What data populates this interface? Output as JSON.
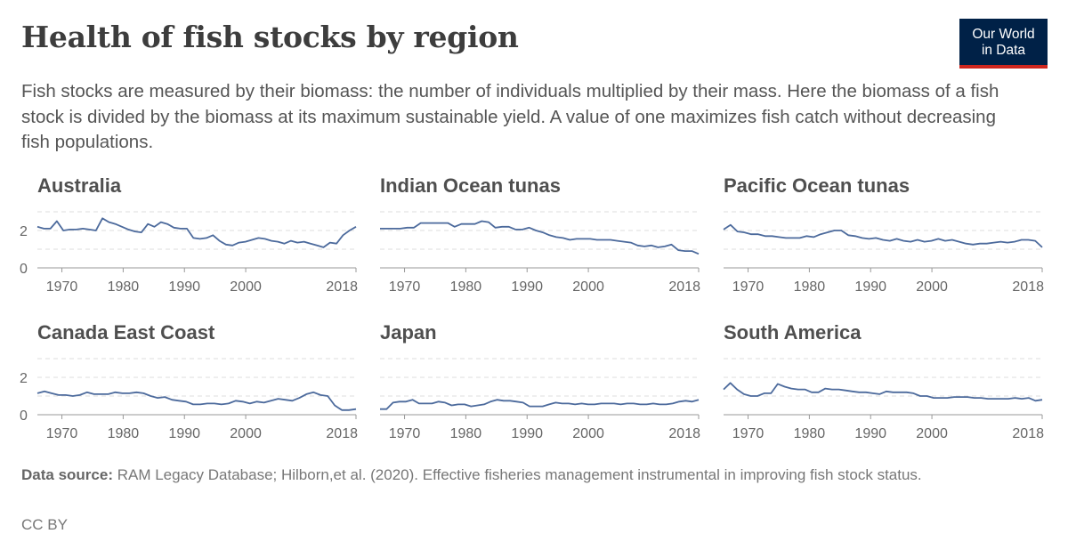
{
  "header": {
    "title": "Health of fish stocks by region",
    "subtitle": "Fish stocks are measured by their biomass: the number of individuals multiplied by their mass. Here the biomass of a fish stock is divided by the biomass at its maximum sustainable yield. A value of one maximizes fish catch without decreasing fish populations."
  },
  "logo": {
    "line1": "Our World",
    "line2": "in Data",
    "bg": "#002147",
    "accent": "#ce261e"
  },
  "footer": {
    "source_label": "Data source:",
    "source_text": "RAM Legacy Database; Hilborn,et al. (2020). Effective fisheries management instrumental in improving fish stock status.",
    "license": "CC BY"
  },
  "chart_data": {
    "type": "line",
    "line_color": "#4c6a9c",
    "grid": true,
    "x_ticks": [
      "1970",
      "1980",
      "1990",
      "2000",
      "2018"
    ],
    "y_ticks": [
      "0",
      "2"
    ],
    "xlim": [
      1966,
      2018
    ],
    "ylim": [
      0,
      3
    ],
    "panels": [
      {
        "title": "Australia",
        "values": [
          2.2,
          2.1,
          2.1,
          2.5,
          2.0,
          2.05,
          2.05,
          2.1,
          2.05,
          2.0,
          2.65,
          2.45,
          2.35,
          2.2,
          2.05,
          1.95,
          1.9,
          2.35,
          2.2,
          2.45,
          2.35,
          2.15,
          2.1,
          2.1,
          1.6,
          1.55,
          1.6,
          1.75,
          1.45,
          1.25,
          1.2,
          1.35,
          1.4,
          1.5,
          1.6,
          1.55,
          1.45,
          1.4,
          1.3,
          1.45,
          1.35,
          1.4,
          1.3,
          1.2,
          1.1,
          1.35,
          1.3,
          1.75,
          2.0,
          2.2
        ]
      },
      {
        "title": "Indian Ocean tunas",
        "values": [
          2.1,
          2.1,
          2.1,
          2.1,
          2.15,
          2.15,
          2.4,
          2.4,
          2.4,
          2.4,
          2.4,
          2.2,
          2.35,
          2.35,
          2.35,
          2.5,
          2.45,
          2.15,
          2.2,
          2.2,
          2.05,
          2.05,
          2.15,
          2.0,
          1.9,
          1.75,
          1.65,
          1.6,
          1.5,
          1.55,
          1.55,
          1.55,
          1.5,
          1.5,
          1.5,
          1.45,
          1.4,
          1.35,
          1.2,
          1.15,
          1.2,
          1.1,
          1.15,
          1.25,
          0.95,
          0.9,
          0.9,
          0.75
        ]
      },
      {
        "title": "Pacific Ocean tunas",
        "values": [
          2.05,
          2.3,
          1.95,
          1.9,
          1.8,
          1.8,
          1.7,
          1.7,
          1.65,
          1.6,
          1.6,
          1.6,
          1.7,
          1.65,
          1.8,
          1.9,
          2.0,
          2.0,
          1.75,
          1.7,
          1.6,
          1.55,
          1.6,
          1.5,
          1.45,
          1.55,
          1.45,
          1.4,
          1.5,
          1.4,
          1.45,
          1.55,
          1.45,
          1.5,
          1.4,
          1.3,
          1.25,
          1.3,
          1.3,
          1.35,
          1.4,
          1.35,
          1.4,
          1.5,
          1.5,
          1.45,
          1.1
        ]
      },
      {
        "title": "Canada East Coast",
        "values": [
          1.15,
          1.25,
          1.15,
          1.05,
          1.05,
          1.0,
          1.05,
          1.2,
          1.1,
          1.1,
          1.1,
          1.2,
          1.15,
          1.15,
          1.2,
          1.15,
          1.0,
          0.9,
          0.95,
          0.8,
          0.75,
          0.7,
          0.55,
          0.55,
          0.6,
          0.6,
          0.55,
          0.6,
          0.75,
          0.7,
          0.6,
          0.7,
          0.65,
          0.75,
          0.85,
          0.8,
          0.75,
          0.9,
          1.1,
          1.2,
          1.05,
          1.0,
          0.5,
          0.25,
          0.25,
          0.3
        ]
      },
      {
        "title": "Japan",
        "values": [
          0.3,
          0.3,
          0.65,
          0.7,
          0.7,
          0.8,
          0.6,
          0.6,
          0.6,
          0.7,
          0.65,
          0.5,
          0.55,
          0.55,
          0.45,
          0.5,
          0.55,
          0.7,
          0.8,
          0.75,
          0.75,
          0.7,
          0.65,
          0.45,
          0.45,
          0.45,
          0.55,
          0.65,
          0.6,
          0.6,
          0.55,
          0.6,
          0.55,
          0.55,
          0.6,
          0.6,
          0.6,
          0.55,
          0.6,
          0.6,
          0.55,
          0.55,
          0.6,
          0.55,
          0.55,
          0.6,
          0.7,
          0.75,
          0.7,
          0.8
        ]
      },
      {
        "title": "South America",
        "values": [
          1.35,
          1.7,
          1.35,
          1.1,
          1.0,
          1.0,
          1.15,
          1.15,
          1.65,
          1.5,
          1.4,
          1.35,
          1.35,
          1.2,
          1.2,
          1.4,
          1.35,
          1.35,
          1.3,
          1.25,
          1.2,
          1.2,
          1.15,
          1.1,
          1.25,
          1.2,
          1.2,
          1.2,
          1.15,
          1.0,
          1.0,
          0.9,
          0.9,
          0.9,
          0.95,
          0.95,
          0.95,
          0.9,
          0.9,
          0.85,
          0.85,
          0.85,
          0.85,
          0.9,
          0.85,
          0.9,
          0.75,
          0.8
        ]
      }
    ]
  }
}
